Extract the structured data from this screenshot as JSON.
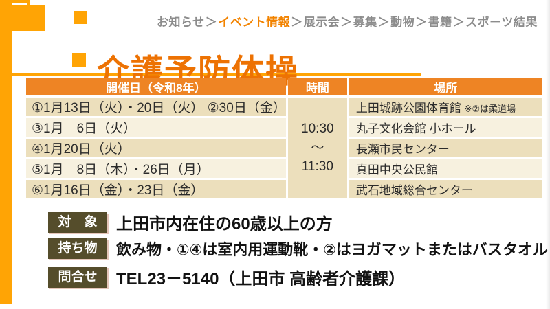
{
  "breadcrumb": {
    "separator": "＞",
    "items": [
      {
        "label": "お知らせ",
        "active": false
      },
      {
        "label": "イベント情報",
        "active": true
      },
      {
        "label": "展示会",
        "active": false
      },
      {
        "label": "募集",
        "active": false
      },
      {
        "label": "動物",
        "active": false
      },
      {
        "label": "書籍",
        "active": false
      },
      {
        "label": "スポーツ結果",
        "active": false
      }
    ]
  },
  "page": {
    "title": "介護予防体操"
  },
  "schedule_table": {
    "headers": [
      "開催日（令和8年）",
      "時間",
      "場所"
    ],
    "time": {
      "start": "10:30",
      "tilde": "～",
      "end": "11:30"
    },
    "rows": [
      {
        "date": "①1月13日（火）・20日（火） ②30日（金）",
        "place": "上田城跡公園体育館",
        "place_note": "※②は柔道場"
      },
      {
        "date": "③1月　6日（火）",
        "place": "丸子文化会館 小ホール",
        "place_note": ""
      },
      {
        "date": "④1月20日（火）",
        "place": "長瀬市民センター",
        "place_note": ""
      },
      {
        "date": "⑤1月　8日（木）・26日（月）",
        "place": "真田中央公民館",
        "place_note": ""
      },
      {
        "date": "⑥1月16日（金）・23日（金）",
        "place": "武石地域総合センター",
        "place_note": ""
      }
    ]
  },
  "info": {
    "target": {
      "label": "対　象",
      "text": "上田市内在住の60歳以上の方"
    },
    "bring": {
      "label": "持ち物",
      "text": "飲み物・①④は室内用運動靴・②はヨガマットまたはバスタオル"
    },
    "contact": {
      "label": "問合せ",
      "text": "TEL23－5140（上田市 高齢者介護課）"
    }
  },
  "colors": {
    "accent_orange": "#FFA405",
    "title_orange": "#ED7203",
    "table_header_orange": "#EE8424",
    "row_dark_beige": "#ECDFBC",
    "row_light_cream": "#F7F1DF",
    "badge_olive": "#554D2B",
    "breadcrumb_active_orange": "#F28300",
    "breadcrumb_gray": "#8C8C8C"
  }
}
